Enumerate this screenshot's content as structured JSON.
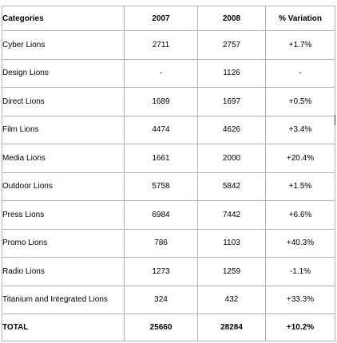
{
  "table": {
    "headers": [
      "Categories",
      "2007",
      "2008",
      "% Variation"
    ],
    "rows": [
      [
        "Cyber Lions",
        "2711",
        "2757",
        "+1.7%"
      ],
      [
        "Design Lions",
        "-",
        "1126",
        "-"
      ],
      [
        "Direct Lions",
        "1689",
        "1697",
        "+0.5%"
      ],
      [
        "Film Lions",
        "4474",
        "4626",
        "+3.4%"
      ],
      [
        "Media Lions",
        "1661",
        "2000",
        "+20.4%"
      ],
      [
        "Outdoor Lions",
        "5758",
        "5842",
        "+1.5%"
      ],
      [
        "Press Lions",
        "6984",
        "7442",
        "+6.6%"
      ],
      [
        "Promo Lions",
        "786",
        "1103",
        "+40.3%"
      ],
      [
        "Radio Lions",
        "1273",
        "1259",
        "-1.1%"
      ],
      [
        "Titanium and Integrated Lions",
        "324",
        "432",
        "+33.3%"
      ]
    ],
    "total": [
      "TOTAL",
      "25660",
      "28284",
      "+10.2%"
    ]
  }
}
